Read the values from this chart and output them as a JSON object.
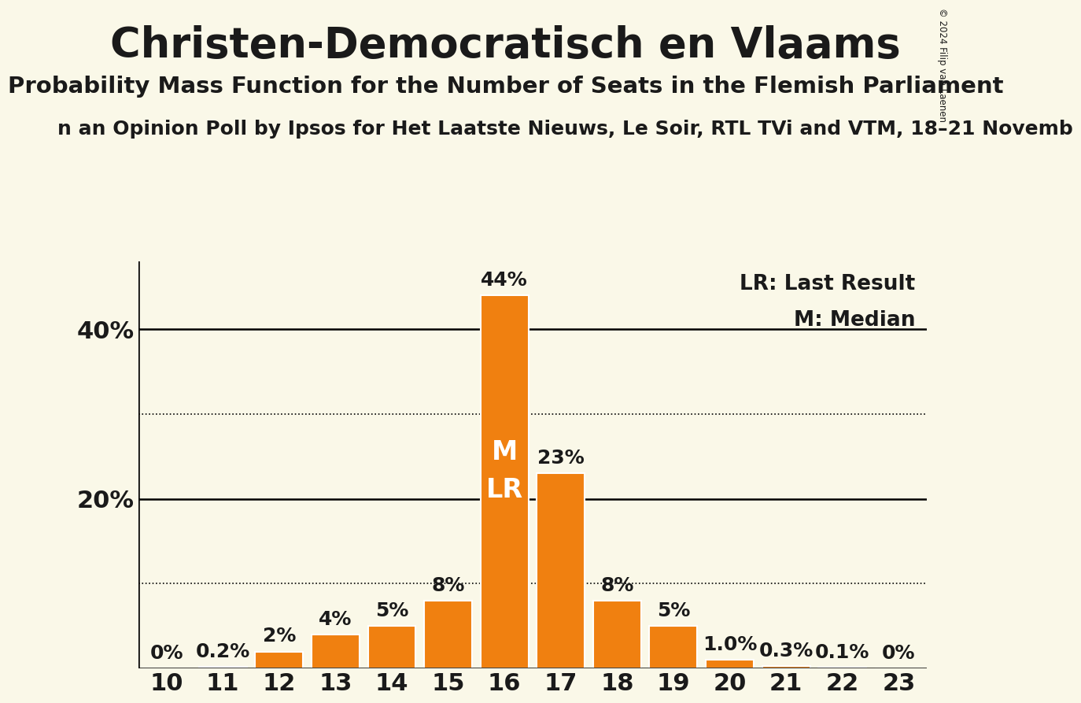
{
  "title": "Christen-Democratisch en Vlaams",
  "subtitle": "Probability Mass Function for the Number of Seats in the Flemish Parliament",
  "source_line": "n an Opinion Poll by Ipsos for Het Laatste Nieuws, Le Soir, RTL TVi and VTM, 18–21 Novemb",
  "copyright": "© 2024 Filip van Laenen",
  "legend_lr": "LR: Last Result",
  "legend_m": "M: Median",
  "seats": [
    10,
    11,
    12,
    13,
    14,
    15,
    16,
    17,
    18,
    19,
    20,
    21,
    22,
    23
  ],
  "probabilities": [
    0.0,
    0.2,
    2.0,
    4.0,
    5.0,
    8.0,
    44.0,
    23.0,
    8.0,
    5.0,
    1.0,
    0.3,
    0.1,
    0.0
  ],
  "bar_color": "#f08010",
  "bar_edge_color": "#ffffff",
  "background_color": "#faf8e8",
  "title_color": "#1a1a1a",
  "bar_label_color": "#1a1a1a",
  "median_seat": 16,
  "lr_seat": 16,
  "ylim": [
    0,
    48
  ],
  "ytick_labels": [
    20,
    40
  ],
  "solid_yticks": [
    20,
    40
  ],
  "dotted_yticks": [
    10,
    30
  ],
  "ylabel_fontsize": 22,
  "xlabel_fontsize": 22,
  "title_fontsize": 38,
  "subtitle_fontsize": 21,
  "source_fontsize": 18,
  "bar_label_fontsize": 18,
  "m_lr_fontsize": 24
}
